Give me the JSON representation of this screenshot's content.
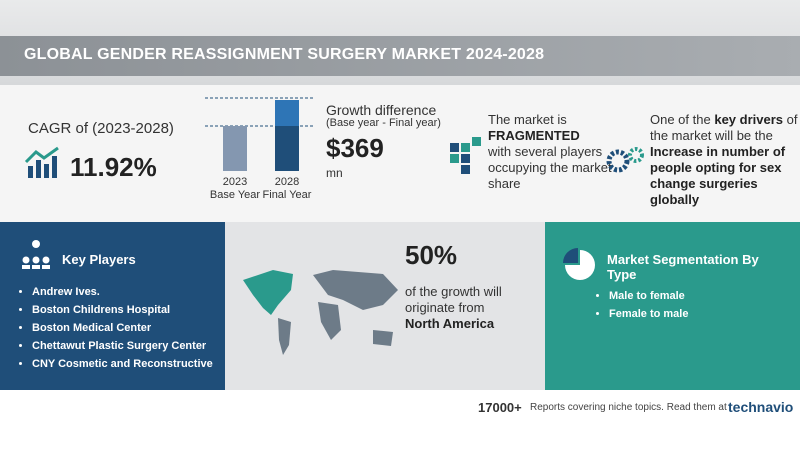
{
  "header": {
    "title": "GLOBAL GENDER REASSIGNMENT SURGERY MARKET 2024-2028"
  },
  "cagr": {
    "label": "CAGR of (2023-2028)",
    "value": "11.92%"
  },
  "bars": {
    "base_year": "2023",
    "base_label": "Base Year",
    "final_year": "2028",
    "final_label": "Final Year"
  },
  "growth": {
    "heading": "Growth difference",
    "subheading": "(Base year - Final year)",
    "value": "$369",
    "unit": "mn"
  },
  "market": {
    "prefix": "The market is",
    "emphasis": "FRAGMENTED",
    "suffix": "with several players occupying the market share"
  },
  "drivers": {
    "prefix": "One of the",
    "emphasis": "key drivers",
    "middle": "of the market will be the",
    "driver": "Increase in number of people opting for sex change surgeries globally"
  },
  "key_players": {
    "title": "Key Players",
    "items": [
      "Andrew Ives.",
      "Boston Childrens Hospital",
      "Boston Medical Center",
      "Chettawut Plastic Surgery Center",
      "CNY Cosmetic and Reconstructive"
    ]
  },
  "region": {
    "share": "50%",
    "text": "of the growth will originate from",
    "name": "North America"
  },
  "segmentation": {
    "title": "Market Segmentation By Type",
    "items": [
      "Male to female",
      "Female to male"
    ]
  },
  "footer": {
    "count": "17000+",
    "text": "Reports covering niche topics. Read them at",
    "brand": "technavio"
  }
}
